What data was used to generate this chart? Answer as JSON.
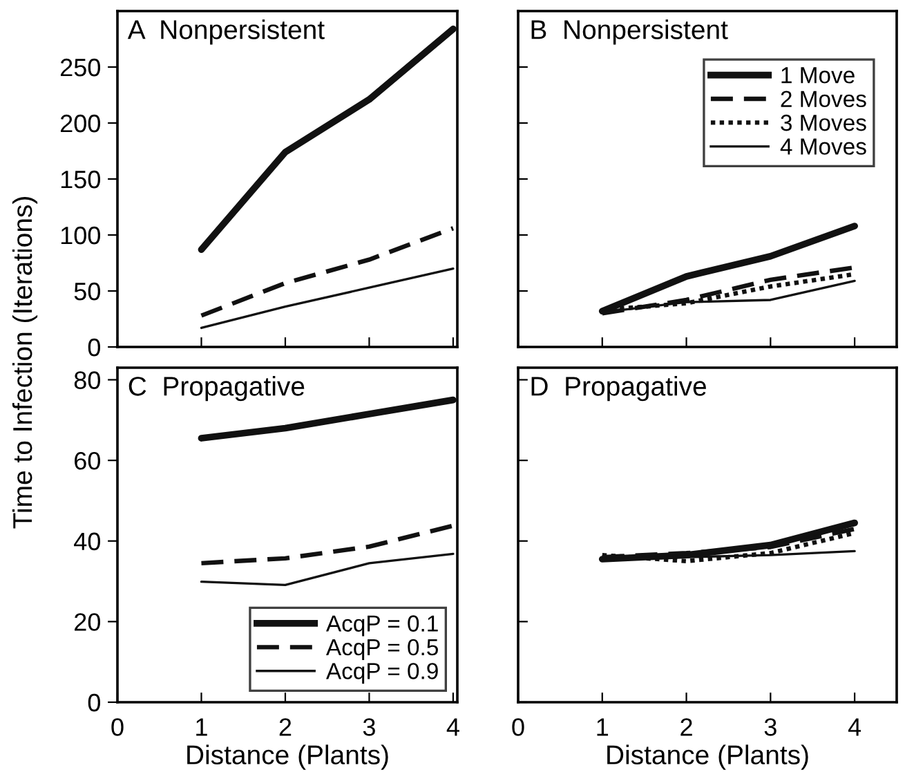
{
  "chart_data": [
    {
      "type": "line",
      "title": "A  Nonpersistent",
      "ylabel": "Time to Infection (Iterations)",
      "x": [
        1,
        2,
        3,
        4
      ],
      "xlim": [
        0,
        4.05
      ],
      "xticks": [
        0,
        1,
        2,
        3,
        4
      ],
      "ylim": [
        0,
        300
      ],
      "yticks": [
        0,
        50,
        100,
        150,
        200,
        250
      ],
      "tick_labels": "y",
      "grid": false,
      "legend": false,
      "series": [
        {
          "color": "#111111",
          "values": [
            87,
            174,
            221,
            284
          ],
          "line_style": "solid"
        },
        {
          "color": "#111111",
          "values": [
            28,
            57,
            78,
            106
          ],
          "line_style": "dashed"
        },
        {
          "color": "#111111",
          "values": [
            17,
            36,
            53,
            70
          ],
          "line_style": "solid"
        }
      ]
    },
    {
      "type": "line",
      "title": "B  Nonpersistent",
      "x": [
        1,
        2,
        3,
        4
      ],
      "xlim": [
        0,
        4.5
      ],
      "xticks": [
        0,
        1,
        2,
        3,
        4
      ],
      "ylim": [
        0,
        300
      ],
      "yticks": [
        0,
        50,
        100,
        150,
        200,
        250
      ],
      "tick_labels": false,
      "grid": false,
      "legend": "top right",
      "series": [
        {
          "name": "1 Move",
          "color": "#111111",
          "values": [
            32,
            63,
            81,
            108
          ],
          "line_style": "solid"
        },
        {
          "name": "2 Moves",
          "color": "#111111",
          "values": [
            30,
            42,
            60,
            71
          ],
          "line_style": "dashed"
        },
        {
          "name": "3 Moves",
          "color": "#111111",
          "values": [
            33,
            39,
            54,
            65
          ],
          "line_style": "dotted"
        },
        {
          "name": "4 Moves",
          "color": "#111111",
          "values": [
            31,
            40,
            42,
            59
          ],
          "line_style": "solid"
        }
      ]
    },
    {
      "type": "line",
      "title": "C  Propagative",
      "xlabel": "Distance (Plants)",
      "x": [
        1,
        2,
        3,
        4
      ],
      "xlim": [
        0,
        4.05
      ],
      "xticks": [
        0,
        1,
        2,
        3,
        4
      ],
      "ylim": [
        0,
        83
      ],
      "yticks": [
        0,
        20,
        40,
        60,
        80
      ],
      "grid": false,
      "legend": "bottom right",
      "series": [
        {
          "name": "AcqP = 0.1",
          "color": "#111111",
          "values": [
            65.5,
            68,
            71.5,
            75
          ],
          "line_style": "solid"
        },
        {
          "name": "AcqP = 0.5",
          "color": "#111111",
          "values": [
            34.5,
            35.7,
            38.6,
            43.8
          ],
          "line_style": "dashed"
        },
        {
          "name": "AcqP = 0.9",
          "color": "#111111",
          "values": [
            29.9,
            29.1,
            34.5,
            36.8
          ],
          "line_style": "solid"
        }
      ]
    },
    {
      "type": "line",
      "title": "D  Propagative",
      "xlabel": "Distance (Plants)",
      "x": [
        1,
        2,
        3,
        4
      ],
      "xlim": [
        0,
        4.5
      ],
      "xticks": [
        0,
        1,
        2,
        3,
        4
      ],
      "ylim": [
        0,
        83
      ],
      "yticks": [
        0,
        20,
        40,
        60,
        80
      ],
      "tick_labels": "x",
      "grid": false,
      "legend": false,
      "series": [
        {
          "color": "#111111",
          "values": [
            35.5,
            36.5,
            39,
            44.5
          ],
          "line_style": "solid"
        },
        {
          "color": "#111111",
          "values": [
            36,
            37,
            38.5,
            43
          ],
          "line_style": "dashed"
        },
        {
          "color": "#111111",
          "values": [
            36.5,
            35,
            37,
            42
          ],
          "line_style": "dotted"
        },
        {
          "color": "#111111",
          "values": [
            35.5,
            36,
            36.5,
            37.5
          ],
          "line_style": "solid"
        }
      ]
    }
  ]
}
